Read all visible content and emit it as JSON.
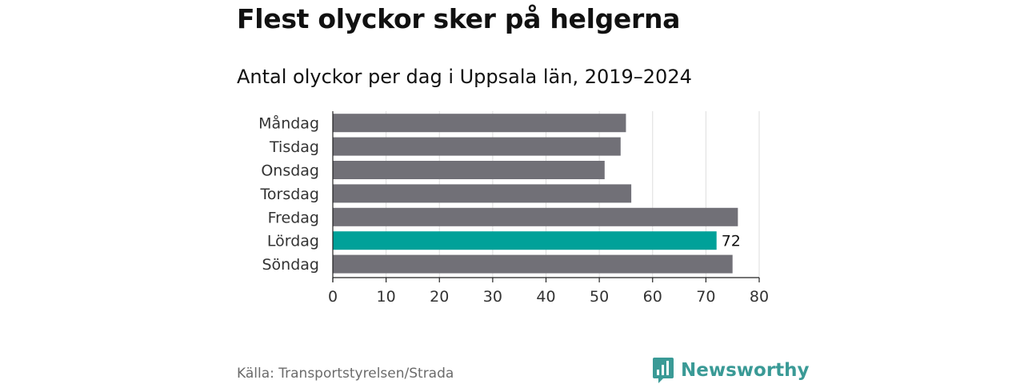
{
  "header": {
    "title": "Flest olyckor sker på helgerna",
    "subtitle": "Antal olyckor per dag i Uppsala län, 2019–2024"
  },
  "footer": {
    "source": "Källa: Transportstyrelsen/Strada",
    "logo_text": "Newsworthy"
  },
  "colors": {
    "bar": "#717077",
    "highlight": "#00a199",
    "brand": "#3a9a96"
  },
  "chart_data": {
    "type": "bar",
    "orientation": "horizontal",
    "categories": [
      "Måndag",
      "Tisdag",
      "Onsdag",
      "Torsdag",
      "Fredag",
      "Lördag",
      "Söndag"
    ],
    "values": [
      55,
      54,
      51,
      56,
      76,
      72,
      75
    ],
    "highlight_category": "Lördag",
    "data_labels": [
      {
        "category": "Lördag",
        "text": "72"
      }
    ],
    "xlim": [
      0,
      80
    ],
    "x_ticks": [
      0,
      10,
      20,
      30,
      40,
      50,
      60,
      70,
      80
    ],
    "grid": true,
    "legend": "none"
  }
}
